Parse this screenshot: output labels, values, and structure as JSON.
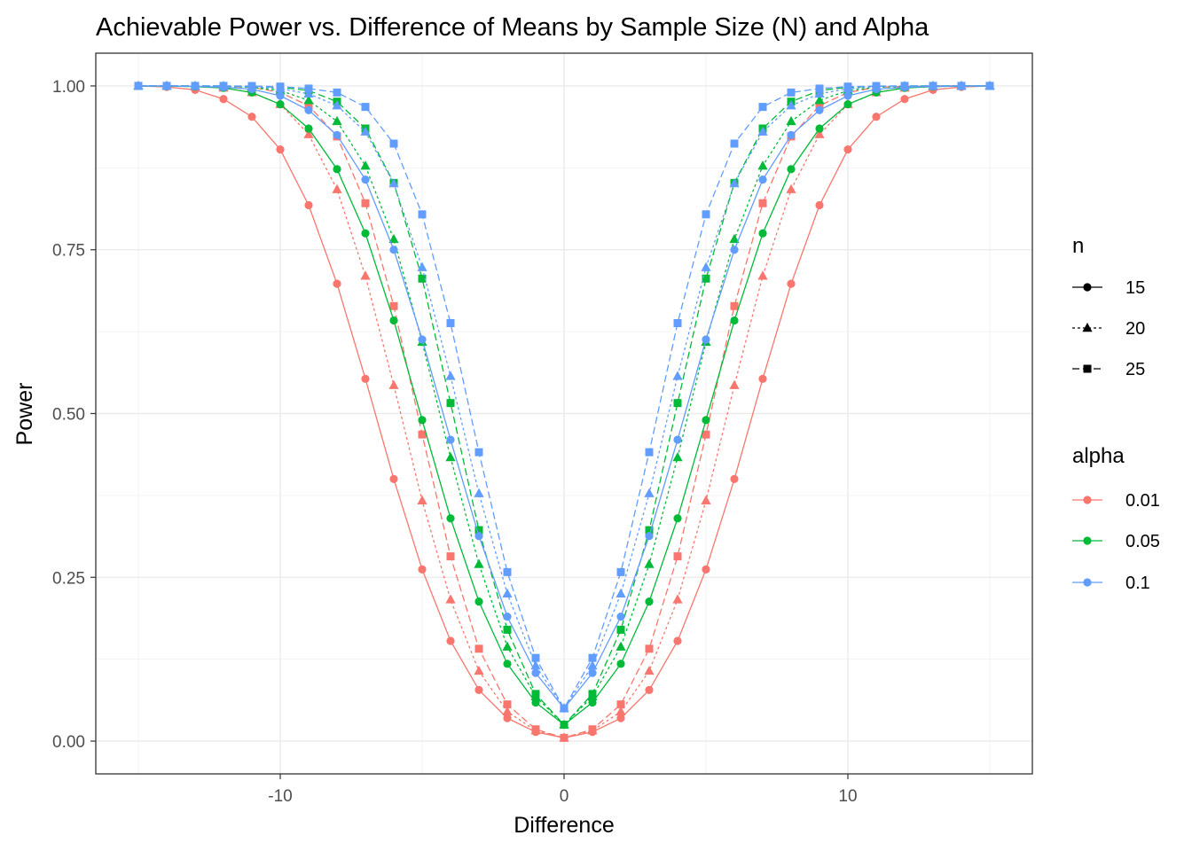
{
  "chart_data": {
    "type": "line",
    "title": "Achievable Power vs. Difference of Means by Sample Size (N) and Alpha",
    "xlabel": "Difference",
    "ylabel": "Power",
    "xlim": [
      -16.5,
      16.5
    ],
    "ylim": [
      -0.05,
      1.05
    ],
    "x_ticks": [
      -10,
      0,
      10
    ],
    "x_tick_labels": [
      "-10",
      "0",
      "10"
    ],
    "y_ticks": [
      0,
      0.25,
      0.5,
      0.75,
      1
    ],
    "y_tick_labels": [
      "0.00",
      "0.25",
      "0.50",
      "0.75",
      "1.00"
    ],
    "grid": true,
    "legend_position": "right",
    "x": [
      -15,
      -14,
      -13,
      -12,
      -11,
      -10,
      -9,
      -8,
      -7,
      -6,
      -5,
      -4,
      -3,
      -2,
      -1,
      0,
      1,
      2,
      3,
      4,
      5,
      6,
      7,
      8,
      9,
      10,
      11,
      12,
      13,
      14,
      15
    ],
    "legend": {
      "n": {
        "title": "n",
        "entries": [
          {
            "label": "15",
            "shape": "circle",
            "linetype": "solid"
          },
          {
            "label": "20",
            "shape": "triangle",
            "linetype": "dotted"
          },
          {
            "label": "25",
            "shape": "square",
            "linetype": "dashed"
          }
        ]
      },
      "alpha": {
        "title": "alpha",
        "entries": [
          {
            "label": "0.01",
            "color": "#F8766D"
          },
          {
            "label": "0.05",
            "color": "#00BA38"
          },
          {
            "label": "0.1",
            "color": "#619CFF"
          }
        ]
      }
    },
    "series": [
      {
        "alpha": "0.01",
        "n": "15",
        "color": "#F8766D",
        "shape": "circle",
        "linetype": "solid",
        "values": [
          0.9999,
          0.9985,
          0.994,
          0.98,
          0.953,
          0.903,
          0.818,
          0.698,
          0.553,
          0.4,
          0.262,
          0.153,
          0.078,
          0.035,
          0.014,
          0.005,
          0.014,
          0.035,
          0.078,
          0.153,
          0.262,
          0.4,
          0.553,
          0.698,
          0.818,
          0.903,
          0.953,
          0.98,
          0.994,
          0.9985,
          0.9999
        ]
      },
      {
        "alpha": "0.01",
        "n": "20",
        "color": "#F8766D",
        "shape": "triangle",
        "linetype": "dotted",
        "values": [
          1.0,
          1.0,
          0.999,
          0.997,
          0.99,
          0.972,
          0.926,
          0.842,
          0.71,
          0.543,
          0.367,
          0.216,
          0.107,
          0.045,
          0.016,
          0.005,
          0.016,
          0.045,
          0.107,
          0.216,
          0.367,
          0.543,
          0.71,
          0.842,
          0.926,
          0.972,
          0.99,
          0.997,
          0.999,
          1.0,
          1.0
        ]
      },
      {
        "alpha": "0.01",
        "n": "25",
        "color": "#F8766D",
        "shape": "square",
        "linetype": "dashed",
        "values": [
          1.0,
          1.0,
          1.0,
          0.999,
          0.998,
          0.99,
          0.97,
          0.923,
          0.821,
          0.664,
          0.468,
          0.282,
          0.141,
          0.056,
          0.018,
          0.005,
          0.018,
          0.056,
          0.141,
          0.282,
          0.468,
          0.664,
          0.821,
          0.923,
          0.97,
          0.99,
          0.998,
          0.999,
          1.0,
          1.0,
          1.0
        ]
      },
      {
        "alpha": "0.05",
        "n": "15",
        "color": "#00BA38",
        "shape": "circle",
        "linetype": "solid",
        "values": [
          1.0,
          0.9998,
          0.999,
          0.997,
          0.99,
          0.972,
          0.935,
          0.873,
          0.775,
          0.642,
          0.49,
          0.34,
          0.213,
          0.118,
          0.059,
          0.025,
          0.059,
          0.118,
          0.213,
          0.34,
          0.49,
          0.642,
          0.775,
          0.873,
          0.935,
          0.972,
          0.99,
          0.997,
          0.999,
          0.9998,
          1.0
        ]
      },
      {
        "alpha": "0.05",
        "n": "20",
        "color": "#00BA38",
        "shape": "triangle",
        "linetype": "dotted",
        "values": [
          1.0,
          1.0,
          1.0,
          0.9995,
          0.998,
          0.993,
          0.978,
          0.946,
          0.878,
          0.766,
          0.609,
          0.433,
          0.27,
          0.144,
          0.068,
          0.025,
          0.068,
          0.144,
          0.27,
          0.433,
          0.609,
          0.766,
          0.878,
          0.946,
          0.978,
          0.993,
          0.998,
          0.9995,
          1.0,
          1.0,
          1.0
        ]
      },
      {
        "alpha": "0.05",
        "n": "25",
        "color": "#00BA38",
        "shape": "square",
        "linetype": "dashed",
        "values": [
          1.0,
          1.0,
          1.0,
          1.0,
          0.9995,
          0.998,
          0.993,
          0.976,
          0.935,
          0.852,
          0.706,
          0.516,
          0.322,
          0.17,
          0.072,
          0.025,
          0.072,
          0.17,
          0.322,
          0.516,
          0.706,
          0.852,
          0.935,
          0.976,
          0.993,
          0.998,
          0.9995,
          1.0,
          1.0,
          1.0,
          1.0
        ]
      },
      {
        "alpha": "0.1",
        "n": "15",
        "color": "#619CFF",
        "shape": "circle",
        "linetype": "solid",
        "values": [
          1.0,
          0.9999,
          0.9995,
          0.998,
          0.995,
          0.985,
          0.963,
          0.925,
          0.857,
          0.75,
          0.613,
          0.46,
          0.313,
          0.19,
          0.104,
          0.05,
          0.104,
          0.19,
          0.313,
          0.46,
          0.613,
          0.75,
          0.857,
          0.925,
          0.963,
          0.985,
          0.995,
          0.998,
          0.9995,
          0.9999,
          1.0
        ]
      },
      {
        "alpha": "0.1",
        "n": "20",
        "color": "#619CFF",
        "shape": "triangle",
        "linetype": "dotted",
        "values": [
          1.0,
          1.0,
          1.0,
          0.9998,
          0.999,
          0.996,
          0.988,
          0.97,
          0.93,
          0.851,
          0.723,
          0.557,
          0.378,
          0.225,
          0.115,
          0.05,
          0.115,
          0.225,
          0.378,
          0.557,
          0.723,
          0.851,
          0.93,
          0.97,
          0.988,
          0.996,
          0.999,
          0.9998,
          1.0,
          1.0,
          1.0
        ]
      },
      {
        "alpha": "0.1",
        "n": "25",
        "color": "#619CFF",
        "shape": "square",
        "linetype": "dashed",
        "values": [
          1.0,
          1.0,
          1.0,
          1.0,
          0.9998,
          0.999,
          0.996,
          0.99,
          0.968,
          0.912,
          0.804,
          0.638,
          0.441,
          0.258,
          0.127,
          0.05,
          0.127,
          0.258,
          0.441,
          0.638,
          0.804,
          0.912,
          0.968,
          0.99,
          0.996,
          0.999,
          0.9998,
          1.0,
          1.0,
          1.0,
          1.0
        ]
      }
    ]
  }
}
